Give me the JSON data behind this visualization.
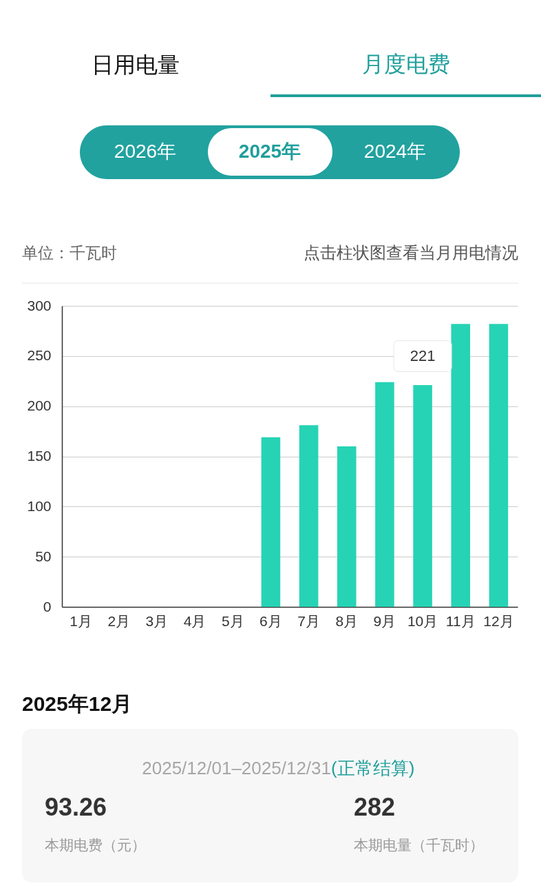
{
  "chart_data": [
    {
      "type": "other",
      "annotations": [
        "日用电量",
        "月度电费",
        "2026年",
        "2025年",
        "2024年"
      ]
    },
    {
      "type": "bar",
      "ylabel": "单位：千瓦时",
      "categories": [
        "1月",
        "2月",
        "3月",
        "4月",
        "5月",
        "6月",
        "7月",
        "8月",
        "9月",
        "10月",
        "11月",
        "12月"
      ],
      "values": [
        null,
        null,
        null,
        null,
        null,
        169,
        181,
        160,
        224,
        221,
        282,
        282
      ],
      "color": "#27d3b5",
      "ylim": [
        0,
        300
      ],
      "yticks": [
        0,
        50,
        100,
        150,
        200,
        250,
        300
      ],
      "grid": "y",
      "annotations": [
        "点击柱状图查看当月用电情况",
        {
          "text": "221",
          "x": "10月",
          "y": 221
        }
      ]
    },
    {
      "type": "other",
      "title": "2025年12月",
      "annotations": [
        "2025/12/01–2025/12/31",
        "(正常结算)",
        "93.26",
        "本期电费（元）",
        "282",
        "本期电量（千瓦时）"
      ]
    }
  ]
}
